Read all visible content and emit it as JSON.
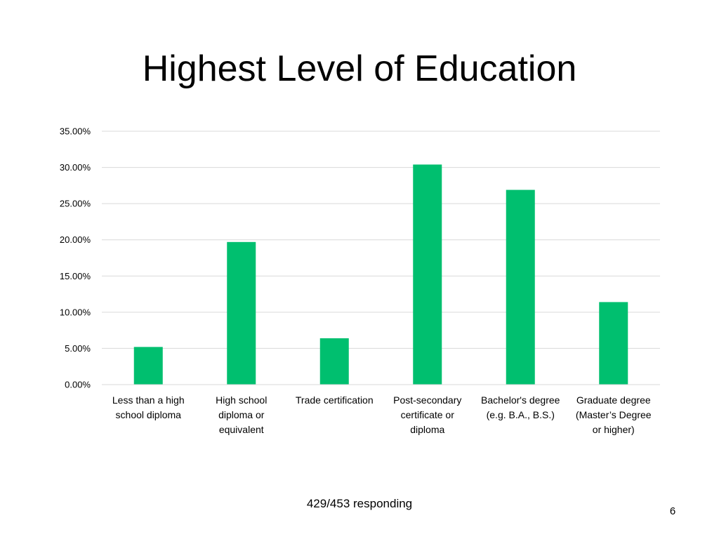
{
  "slide": {
    "title": "Highest Level of Education",
    "footer_note": "429/453 responding",
    "page_number": "6"
  },
  "colors": {
    "bar": "#00BF6F",
    "gridline": "#D9D9D9",
    "axis_line": "#D9D9D9"
  },
  "chart_data": {
    "type": "bar",
    "categories": [
      [
        "Less than a high",
        "school diploma"
      ],
      [
        "High school",
        "diploma or",
        "equivalent"
      ],
      [
        "Trade certification"
      ],
      [
        "Post-secondary",
        "certificate or",
        "diploma"
      ],
      [
        "Bachelor's degree",
        "(e.g. B.A., B.S.)"
      ],
      [
        "Graduate degree",
        "(Master’s Degree",
        "or higher)"
      ]
    ],
    "values": [
      5.2,
      19.7,
      6.4,
      30.4,
      26.9,
      11.4
    ],
    "ylim": [
      0,
      35
    ],
    "yticks": [
      0,
      5,
      10,
      15,
      20,
      25,
      30,
      35
    ],
    "ytick_labels": [
      "0.00%",
      "5.00%",
      "10.00%",
      "15.00%",
      "20.00%",
      "25.00%",
      "30.00%",
      "35.00%"
    ],
    "grid": true,
    "legend": "none"
  }
}
